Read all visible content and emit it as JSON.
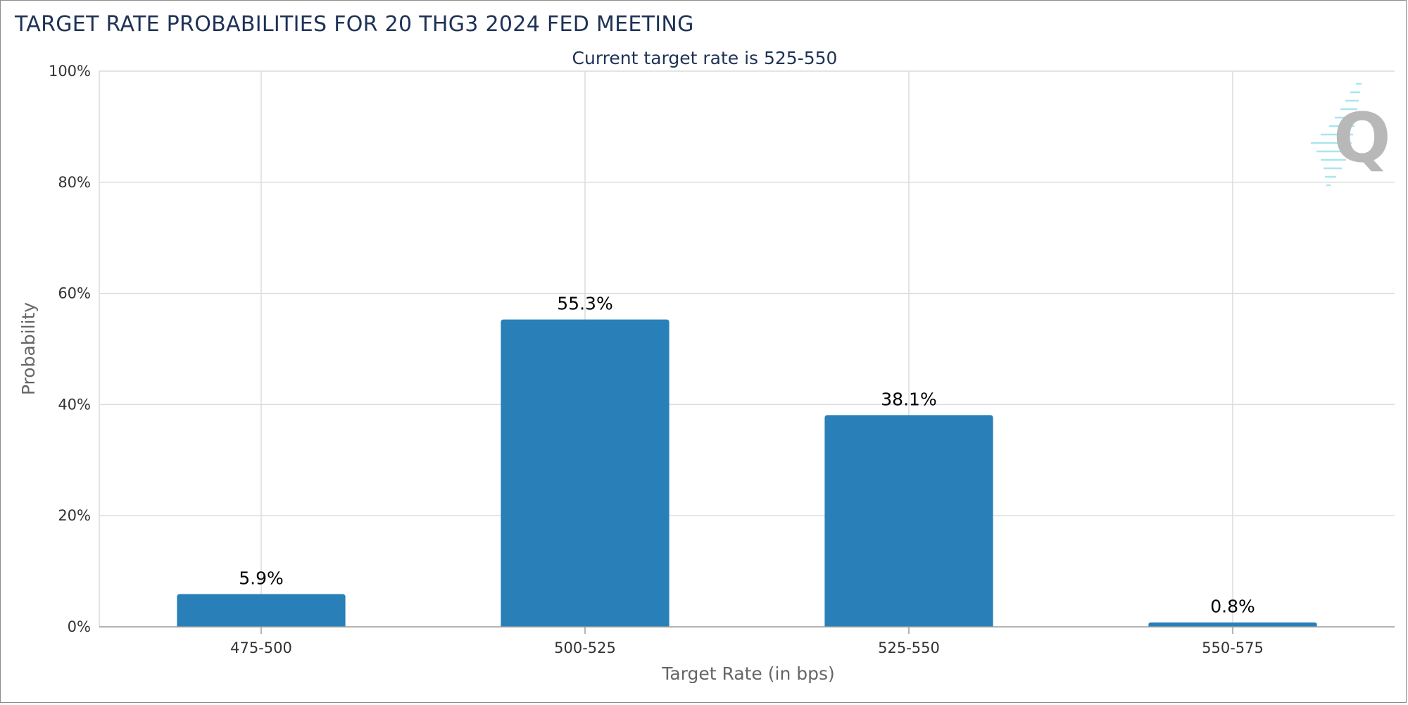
{
  "chart_data": {
    "type": "bar",
    "title": "TARGET RATE PROBABILITIES FOR 20 THG3 2024 FED MEETING",
    "subtitle": "Current target rate is 525-550",
    "xlabel": "Target Rate (in bps)",
    "ylabel": "Probability",
    "categories": [
      "475-500",
      "500-525",
      "525-550",
      "550-575"
    ],
    "values": [
      5.9,
      55.3,
      38.1,
      0.8
    ],
    "data_labels": [
      "5.9%",
      "55.3%",
      "38.1%",
      "0.8%"
    ],
    "ylim": [
      0,
      100
    ],
    "yticks": [
      0,
      20,
      40,
      60,
      80,
      100
    ],
    "ytick_labels": [
      "0%",
      "20%",
      "40%",
      "60%",
      "80%",
      "100%"
    ],
    "grid": true,
    "legend": "none",
    "colors": {
      "bar": "#2980b9",
      "title": "#1f3256",
      "logo": "#b8b8b8",
      "logo_lines": "#a8e6f0"
    },
    "logo": "quikstrike-q-logo"
  }
}
